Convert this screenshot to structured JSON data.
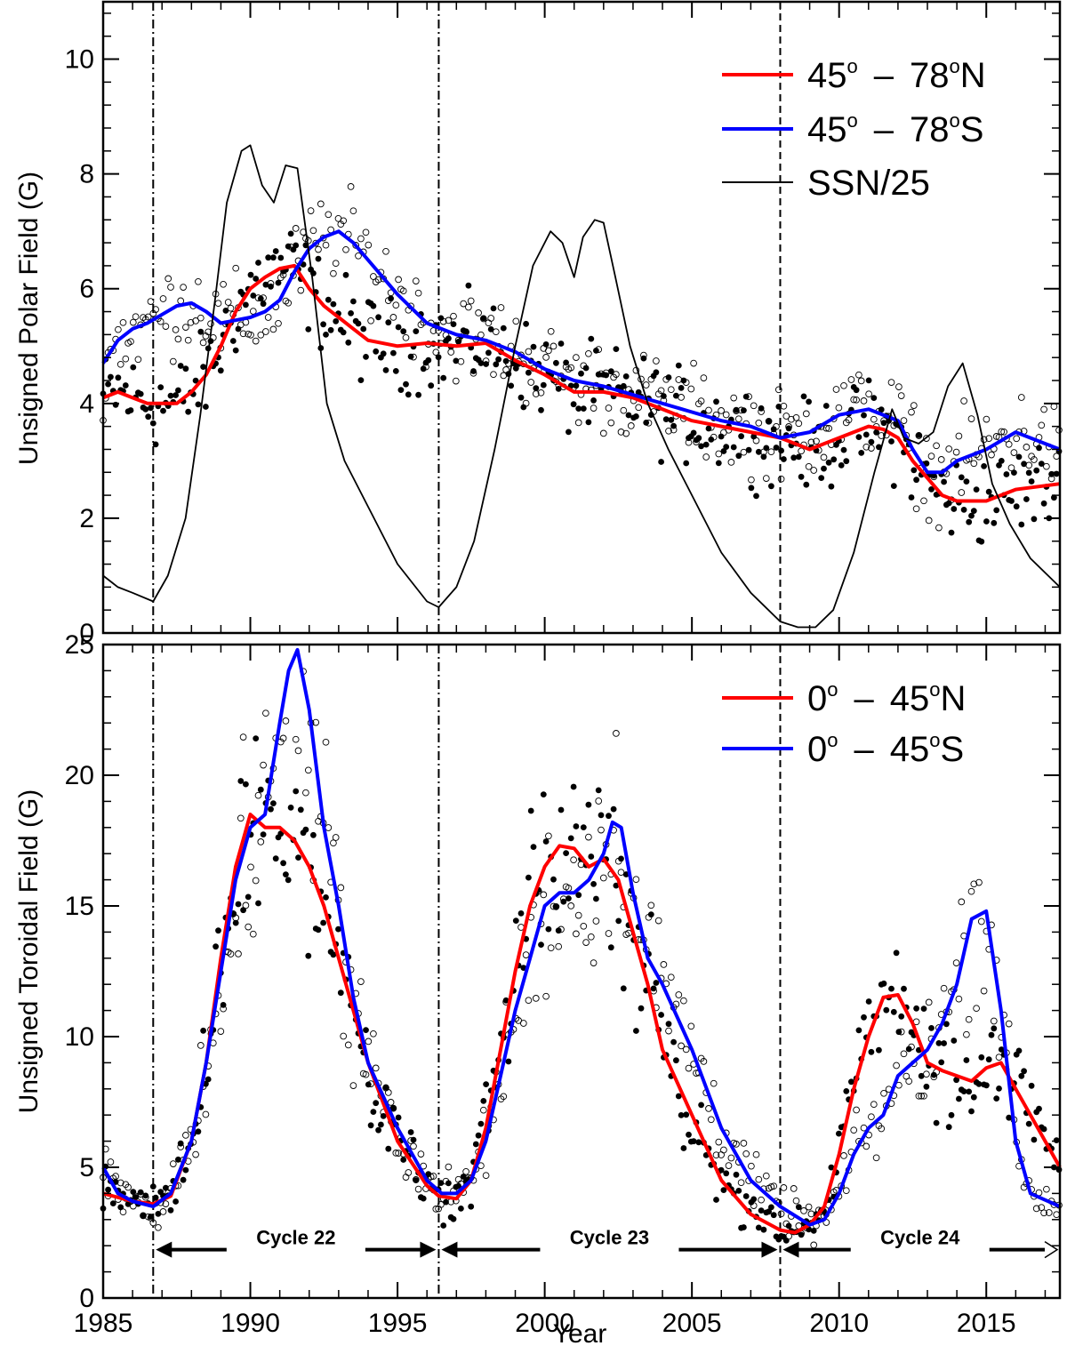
{
  "chart_data": [
    {
      "type": "line",
      "panel": "top",
      "ylabel": "Unsigned Polar Field (G)",
      "xlabel": "",
      "xlim": [
        1985,
        2017.5
      ],
      "ylim": [
        0,
        11
      ],
      "xticks": [
        1985,
        1990,
        1995,
        2000,
        2005,
        2010,
        2015
      ],
      "yticks": [
        0,
        2,
        4,
        6,
        8,
        10
      ],
      "legend_position": "top-right",
      "minima_lines": [
        1986.7,
        1996.4,
        2008.0
      ],
      "series": [
        {
          "name": "45⁰ – 78⁰N",
          "legend_main": "45",
          "legend_sep": "–",
          "legend_end": "78",
          "legend_sup": "o",
          "legend_suffix": "N",
          "color": "#ff0000",
          "x": [
            1985,
            1985.5,
            1986,
            1986.5,
            1987,
            1987.5,
            1988,
            1988.5,
            1989,
            1989.5,
            1990,
            1990.5,
            1991,
            1991.5,
            1992,
            1992.5,
            1993,
            1993.5,
            1994,
            1995,
            1996,
            1997,
            1998,
            1999,
            2000,
            2001,
            2002,
            2003,
            2004,
            2005,
            2006,
            2007,
            2008,
            2009,
            2010,
            2011,
            2011.5,
            2012,
            2012.5,
            2013,
            2013.5,
            2014,
            2015,
            2016,
            2017.5
          ],
          "y": [
            4.1,
            4.2,
            4.1,
            4.0,
            4.0,
            4.0,
            4.2,
            4.5,
            5.0,
            5.6,
            6.0,
            6.2,
            6.35,
            6.4,
            6.0,
            5.7,
            5.5,
            5.3,
            5.1,
            5.0,
            5.05,
            5.0,
            5.05,
            4.75,
            4.5,
            4.2,
            4.2,
            4.1,
            3.9,
            3.7,
            3.6,
            3.5,
            3.4,
            3.2,
            3.4,
            3.6,
            3.55,
            3.4,
            3.0,
            2.7,
            2.4,
            2.3,
            2.3,
            2.5,
            2.6
          ]
        },
        {
          "name": "45⁰ – 78⁰S",
          "legend_main": "45",
          "legend_sep": "–",
          "legend_end": "78",
          "legend_sup": "o",
          "legend_suffix": "S",
          "color": "#0000ff",
          "x": [
            1985,
            1985.5,
            1986,
            1986.5,
            1987,
            1987.5,
            1988,
            1988.5,
            1989,
            1989.5,
            1990,
            1990.5,
            1991,
            1991.5,
            1992,
            1992.5,
            1993,
            1993.5,
            1994,
            1995,
            1996,
            1997,
            1998,
            1999,
            2000,
            2001,
            2002,
            2003,
            2004,
            2005,
            2006,
            2007,
            2008,
            2009,
            2010,
            2011,
            2012,
            2012.5,
            2013,
            2013.5,
            2014,
            2015,
            2016,
            2017.5
          ],
          "y": [
            4.7,
            5.1,
            5.3,
            5.4,
            5.55,
            5.7,
            5.75,
            5.6,
            5.4,
            5.45,
            5.5,
            5.6,
            5.8,
            6.3,
            6.7,
            6.9,
            7.0,
            6.8,
            6.5,
            5.9,
            5.4,
            5.2,
            5.1,
            4.9,
            4.6,
            4.4,
            4.3,
            4.15,
            4.0,
            3.85,
            3.7,
            3.6,
            3.4,
            3.5,
            3.8,
            3.9,
            3.7,
            3.2,
            2.8,
            2.8,
            3.0,
            3.2,
            3.5,
            3.2
          ]
        },
        {
          "name": "SSN/25",
          "legend_text": "SSN/25",
          "color": "#000000",
          "x": [
            1985,
            1985.5,
            1986,
            1986.7,
            1987.2,
            1987.8,
            1988.3,
            1988.8,
            1989.2,
            1989.7,
            1990.0,
            1990.4,
            1990.8,
            1991.2,
            1991.6,
            1992.1,
            1992.6,
            1993.2,
            1994.0,
            1995.0,
            1996.0,
            1996.4,
            1997.0,
            1997.6,
            1998.3,
            1999.0,
            1999.6,
            2000.2,
            2000.6,
            2001.0,
            2001.3,
            2001.7,
            2002.0,
            2002.4,
            2002.9,
            2003.5,
            2004.2,
            2005.0,
            2006.0,
            2007.0,
            2008.0,
            2008.6,
            2009.2,
            2009.8,
            2010.5,
            2011.2,
            2011.8,
            2012.2,
            2012.7,
            2013.2,
            2013.7,
            2014.2,
            2014.7,
            2015.2,
            2015.8,
            2016.5,
            2017.5
          ],
          "y": [
            1.0,
            0.8,
            0.7,
            0.55,
            1.0,
            2.0,
            3.8,
            5.8,
            7.5,
            8.4,
            8.5,
            7.8,
            7.5,
            8.15,
            8.1,
            6.2,
            4.0,
            3.0,
            2.2,
            1.2,
            0.55,
            0.45,
            0.8,
            1.6,
            3.2,
            5.0,
            6.4,
            7.0,
            6.8,
            6.2,
            6.9,
            7.2,
            7.15,
            6.2,
            5.0,
            4.0,
            3.2,
            2.4,
            1.4,
            0.7,
            0.2,
            0.1,
            0.1,
            0.4,
            1.4,
            2.8,
            3.9,
            3.4,
            3.3,
            3.5,
            4.3,
            4.7,
            3.8,
            2.6,
            1.9,
            1.3,
            0.8
          ]
        }
      ]
    },
    {
      "type": "line",
      "panel": "bottom",
      "ylabel": "Unsigned Toroidal Field (G)",
      "xlabel": "Year",
      "xlim": [
        1985,
        2017.5
      ],
      "ylim": [
        0,
        25
      ],
      "xticks": [
        1985,
        1990,
        1995,
        2000,
        2005,
        2010,
        2015
      ],
      "yticks": [
        0,
        5,
        10,
        15,
        20,
        25
      ],
      "legend_position": "top-right",
      "minima_lines": [
        1986.7,
        1996.4,
        2008.0
      ],
      "series": [
        {
          "name": "0⁰ – 45⁰N",
          "legend_main": "0",
          "legend_sep": "–",
          "legend_end": "45",
          "legend_sup": "o",
          "legend_suffix": "N",
          "color": "#ff0000",
          "x": [
            1985,
            1986,
            1986.7,
            1987.3,
            1988,
            1988.5,
            1989,
            1989.5,
            1990,
            1990.5,
            1991,
            1991.5,
            1992,
            1992.5,
            1993,
            1993.5,
            1994,
            1995,
            1996,
            1996.4,
            1997,
            1997.5,
            1998,
            1998.5,
            1999,
            1999.5,
            2000,
            2000.5,
            2001,
            2001.5,
            2002,
            2002.5,
            2003,
            2003.5,
            2004,
            2005,
            2006,
            2007,
            2008,
            2008.5,
            2009,
            2009.5,
            2010,
            2010.5,
            2011,
            2011.5,
            2012,
            2012.5,
            2013,
            2013.5,
            2014,
            2014.5,
            2015,
            2015.5,
            2016,
            2016.5,
            2017.5
          ],
          "y": [
            4.0,
            3.7,
            3.6,
            3.9,
            6.0,
            9.0,
            13.0,
            16.5,
            18.5,
            18.0,
            18.0,
            17.5,
            16.5,
            15.0,
            13.0,
            11.0,
            9.0,
            6.0,
            4.3,
            3.9,
            3.8,
            4.5,
            6.5,
            9.5,
            12.5,
            15.0,
            16.5,
            17.3,
            17.2,
            16.5,
            16.8,
            16.0,
            14.0,
            12.0,
            9.5,
            7.0,
            4.5,
            3.2,
            2.6,
            2.5,
            2.8,
            3.5,
            5.5,
            8.0,
            10.0,
            11.5,
            11.6,
            10.5,
            9.0,
            8.7,
            8.5,
            8.3,
            8.8,
            9.0,
            8.0,
            7.0,
            5.0
          ]
        },
        {
          "name": "0⁰ – 45⁰S",
          "legend_main": "0",
          "legend_sep": "–",
          "legend_end": "45",
          "legend_sup": "o",
          "legend_suffix": "S",
          "color": "#0000ff",
          "x": [
            1985,
            1985.5,
            1986,
            1986.7,
            1987.3,
            1988,
            1988.5,
            1989,
            1989.5,
            1990,
            1990.5,
            1991,
            1991.3,
            1991.6,
            1992,
            1992.5,
            1993,
            1993.5,
            1994,
            1995,
            1996,
            1996.5,
            1997,
            1997.5,
            1998,
            1998.5,
            1999,
            1999.5,
            2000,
            2000.5,
            2001,
            2001.5,
            2002,
            2002.3,
            2002.6,
            2003,
            2003.5,
            2004,
            2005,
            2006,
            2007,
            2008,
            2009,
            2009.5,
            2010,
            2010.5,
            2011,
            2011.5,
            2012,
            2012.5,
            2013,
            2013.5,
            2014,
            2014.5,
            2015,
            2015.5,
            2016,
            2016.5,
            2017.5
          ],
          "y": [
            5.0,
            4.0,
            3.7,
            3.5,
            4.0,
            6.0,
            9.0,
            12.5,
            16.0,
            18.0,
            18.5,
            22.0,
            24.0,
            24.8,
            22.5,
            18.0,
            15.0,
            11.5,
            9.0,
            6.5,
            4.5,
            4.0,
            4.0,
            4.5,
            6.0,
            8.5,
            11.0,
            13.0,
            15.0,
            15.5,
            15.5,
            16.0,
            17.0,
            18.2,
            18.0,
            15.5,
            13.0,
            12.0,
            9.5,
            6.5,
            4.5,
            3.5,
            2.8,
            3.0,
            4.0,
            5.5,
            6.5,
            7.0,
            8.5,
            9.0,
            9.5,
            10.5,
            12.0,
            14.5,
            14.8,
            11.0,
            6.0,
            4.0,
            3.5
          ]
        }
      ],
      "cycle_annotations": [
        {
          "label": "Cycle 22",
          "start": 1986.7,
          "end": 1996.4
        },
        {
          "label": "Cycle 23",
          "start": 1996.4,
          "end": 2008.0
        },
        {
          "label": "Cycle 24",
          "start": 2008.0,
          "end": 2017.5
        }
      ]
    }
  ]
}
